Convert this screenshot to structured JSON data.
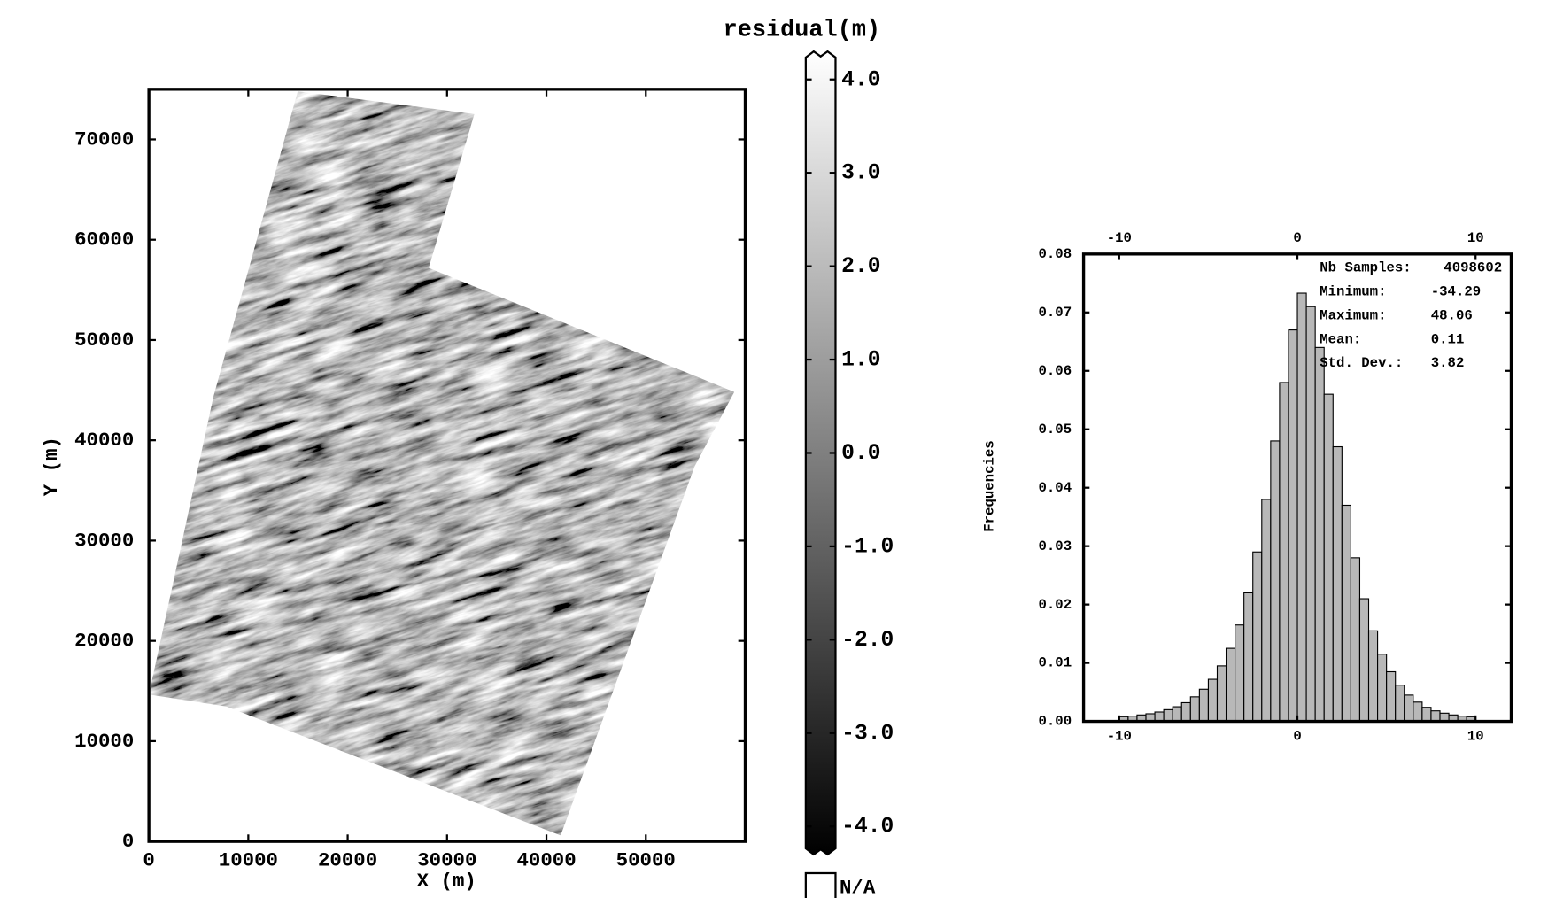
{
  "chart_data": [
    {
      "type": "image",
      "xlabel": "X (m)",
      "ylabel": "Y (m)",
      "xlim": [
        0,
        60000
      ],
      "ylim": [
        0,
        75000
      ],
      "xticks": [
        0,
        10000,
        20000,
        30000,
        40000,
        50000
      ],
      "yticks": [
        0,
        10000,
        20000,
        30000,
        40000,
        50000,
        60000,
        70000
      ],
      "colormap": "gray",
      "colorbar": {
        "title": "residual(m)",
        "lim": [
          -4.3,
          4.3
        ],
        "ticks": [
          {
            "value": 4,
            "label": "4.0"
          },
          {
            "value": 3,
            "label": "3.0"
          },
          {
            "value": 2,
            "label": "2.0"
          },
          {
            "value": 1,
            "label": "1.0"
          },
          {
            "value": 0,
            "label": "0.0"
          },
          {
            "value": -1,
            "label": "-1.0"
          },
          {
            "value": -2,
            "label": "-2.0"
          },
          {
            "value": -3,
            "label": "-3.0"
          },
          {
            "value": -4,
            "label": "-4.0"
          }
        ],
        "na_label": "N/A"
      }
    },
    {
      "type": "histogram",
      "ylabel": "Frequencies",
      "color": "#b8b8b8",
      "bins": [
        -10,
        -9.5,
        -9,
        -8.5,
        -8,
        -7.5,
        -7,
        -6.5,
        -6,
        -5.5,
        -5,
        -4.5,
        -4,
        -3.5,
        -3,
        -2.5,
        -2,
        -1.5,
        -1,
        -0.5,
        0,
        0.5,
        1,
        1.5,
        2,
        2.5,
        3,
        3.5,
        4,
        4.5,
        5,
        5.5,
        6,
        6.5,
        7,
        7.5,
        8,
        8.5,
        9,
        9.5,
        10
      ],
      "values": [
        0.0008,
        0.0009,
        0.0011,
        0.0013,
        0.0016,
        0.002,
        0.0025,
        0.0032,
        0.0042,
        0.0055,
        0.0072,
        0.0095,
        0.0125,
        0.0165,
        0.022,
        0.029,
        0.038,
        0.048,
        0.058,
        0.067,
        0.0733,
        0.071,
        0.064,
        0.056,
        0.047,
        0.037,
        0.028,
        0.021,
        0.0155,
        0.0115,
        0.0085,
        0.0062,
        0.0045,
        0.0033,
        0.0024,
        0.0018,
        0.0014,
        0.0011,
        0.0009,
        0.0008
      ],
      "xlim": [
        -12,
        12
      ],
      "ylim": [
        0,
        0.08
      ],
      "xticks": [
        -10,
        0,
        10
      ],
      "yticks": [
        {
          "value": 0,
          "label": "0.00"
        },
        {
          "value": 0.01,
          "label": "0.01"
        },
        {
          "value": 0.02,
          "label": "0.02"
        },
        {
          "value": 0.03,
          "label": "0.03"
        },
        {
          "value": 0.04,
          "label": "0.04"
        },
        {
          "value": 0.05,
          "label": "0.05"
        },
        {
          "value": 0.06,
          "label": "0.06"
        },
        {
          "value": 0.07,
          "label": "0.07"
        },
        {
          "value": 0.08,
          "label": "0.08"
        }
      ],
      "stats": [
        {
          "label": "Nb Samples:",
          "value": 4098602
        },
        {
          "label": "Minimum:",
          "value": -34.29
        },
        {
          "label": "Maximum:",
          "value": 48.06
        },
        {
          "label": "Mean:",
          "value": 0.11
        },
        {
          "label": "Std. Dev.:",
          "value": 3.82
        }
      ]
    }
  ]
}
